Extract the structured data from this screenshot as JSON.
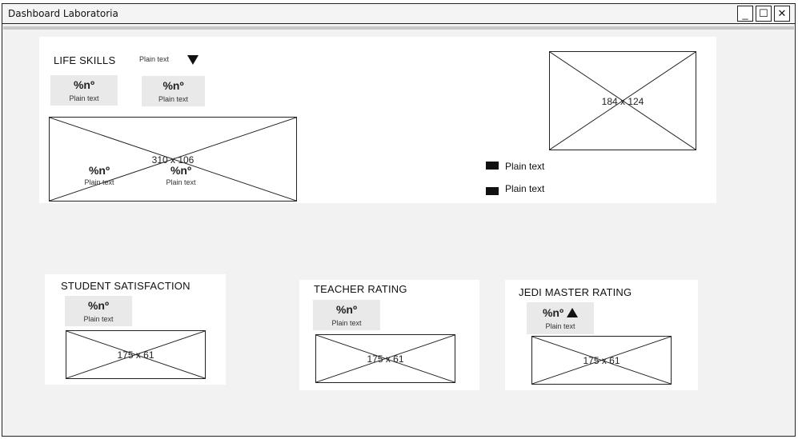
{
  "window": {
    "title": "Dashboard Laboratoria",
    "buttons": {
      "minimize": "_",
      "maximize": "☐",
      "close": "✕"
    }
  },
  "life_skills": {
    "title": "LIFE SKILLS",
    "dropdown_label": "Plain text",
    "kpis": [
      {
        "value": "%nº",
        "label": "Plain text"
      },
      {
        "value": "%nº",
        "label": "Plain text"
      }
    ],
    "chart_placeholder": {
      "label": "310 x 106",
      "kpis": [
        {
          "value": "%nº",
          "label": "Plain text"
        },
        {
          "value": "%nº",
          "label": "Plain text"
        }
      ]
    },
    "right_placeholder_label": "184 x 124",
    "legend": [
      "Plain text",
      "Plain text"
    ]
  },
  "student_satisfaction": {
    "title": "STUDENT SATISFACTION",
    "kpi": {
      "value": "%nº",
      "label": "Plain text"
    },
    "placeholder_label": "175 x 61"
  },
  "teacher_rating": {
    "title": "TEACHER RATING",
    "kpi": {
      "value": "%nº",
      "label": "Plain text"
    },
    "placeholder_label": "175 x 61"
  },
  "jedi_master_rating": {
    "title": "JEDI MASTER RATING",
    "kpi": {
      "value": "%nº",
      "label": "Plain text"
    },
    "placeholder_label": "175 x 61"
  },
  "icons": {
    "dropdown": "triangle-down",
    "trend": "triangle-up"
  }
}
